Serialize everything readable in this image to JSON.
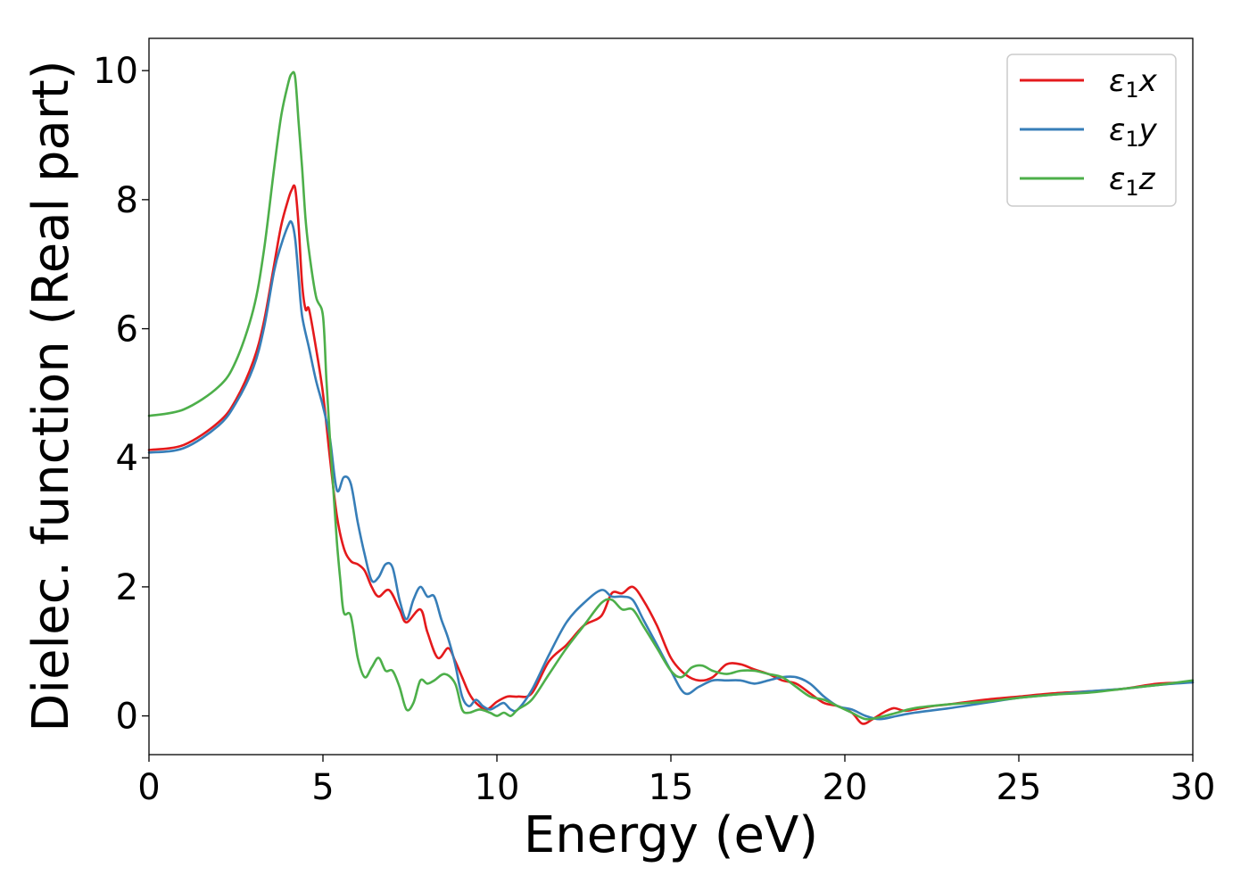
{
  "chart_data": {
    "type": "line",
    "xlabel": "Energy (eV)",
    "ylabel": "Dielec. function (Real part)",
    "xlim": [
      0,
      30
    ],
    "ylim": [
      -0.6,
      10.5
    ],
    "xticks": [
      "0",
      "5",
      "10",
      "15",
      "20",
      "25",
      "30"
    ],
    "yticks": [
      "0",
      "2",
      "4",
      "6",
      "8",
      "10"
    ],
    "grid": false,
    "legend_position": "top-right",
    "series": [
      {
        "name": "ε₁x",
        "legend": {
          "base": "ε",
          "sub": "1",
          "suffix": "x"
        },
        "color": "#e41a1c",
        "x": [
          0,
          1,
          2,
          2.5,
          3,
          3.3,
          3.6,
          3.8,
          4.0,
          4.1,
          4.2,
          4.3,
          4.4,
          4.5,
          4.6,
          4.8,
          5.0,
          5.2,
          5.4,
          5.6,
          5.8,
          6.0,
          6.2,
          6.4,
          6.6,
          6.9,
          7.2,
          7.4,
          7.8,
          8.0,
          8.3,
          8.6,
          8.8,
          9.0,
          9.2,
          9.4,
          9.7,
          10.0,
          10.3,
          10.6,
          11.0,
          11.5,
          12.0,
          12.5,
          13.0,
          13.3,
          13.6,
          13.9,
          14.2,
          14.6,
          15.0,
          15.4,
          15.8,
          16.2,
          16.6,
          17.0,
          17.4,
          17.8,
          18.2,
          18.6,
          19.0,
          19.4,
          19.8,
          20.2,
          20.5,
          20.8,
          21.1,
          21.4,
          21.7,
          22.0,
          22.5,
          23,
          24,
          25,
          26,
          27,
          28,
          29,
          30
        ],
        "y": [
          4.12,
          4.2,
          4.55,
          4.9,
          5.5,
          6.1,
          7.0,
          7.6,
          8.0,
          8.15,
          8.18,
          7.6,
          6.7,
          6.3,
          6.3,
          5.7,
          5.0,
          4.0,
          3.1,
          2.6,
          2.4,
          2.35,
          2.25,
          2.0,
          1.85,
          1.95,
          1.65,
          1.45,
          1.65,
          1.3,
          0.9,
          1.05,
          0.85,
          0.6,
          0.35,
          0.2,
          0.1,
          0.22,
          0.3,
          0.3,
          0.35,
          0.85,
          1.1,
          1.4,
          1.55,
          1.9,
          1.9,
          2.0,
          1.8,
          1.4,
          0.9,
          0.65,
          0.55,
          0.6,
          0.8,
          0.8,
          0.72,
          0.65,
          0.55,
          0.5,
          0.35,
          0.2,
          0.15,
          0.05,
          -0.12,
          -0.05,
          0.05,
          0.12,
          0.08,
          0.1,
          0.15,
          0.18,
          0.25,
          0.3,
          0.35,
          0.38,
          0.42,
          0.5,
          0.52
        ]
      },
      {
        "name": "ε₁y",
        "legend": {
          "base": "ε",
          "sub": "1",
          "suffix": "y"
        },
        "color": "#377eb8",
        "x": [
          0,
          1,
          2,
          2.5,
          3,
          3.3,
          3.6,
          3.8,
          4.0,
          4.1,
          4.2,
          4.3,
          4.4,
          4.6,
          4.8,
          5.0,
          5.2,
          5.4,
          5.6,
          5.8,
          6.0,
          6.2,
          6.4,
          6.6,
          6.8,
          7.0,
          7.2,
          7.4,
          7.6,
          7.8,
          8.0,
          8.2,
          8.4,
          8.6,
          8.8,
          9.0,
          9.2,
          9.4,
          9.6,
          9.8,
          10.0,
          10.2,
          10.4,
          10.6,
          11.0,
          11.5,
          12.0,
          12.5,
          13.0,
          13.3,
          13.6,
          13.9,
          14.2,
          14.6,
          15.0,
          15.4,
          15.8,
          16.2,
          16.6,
          17.0,
          17.4,
          17.8,
          18.2,
          18.6,
          19.0,
          19.4,
          19.8,
          20.2,
          20.6,
          21.0,
          21.5,
          22,
          23,
          24,
          25,
          26,
          27,
          28,
          29,
          30
        ],
        "y": [
          4.08,
          4.15,
          4.5,
          4.85,
          5.4,
          6.0,
          6.9,
          7.3,
          7.6,
          7.65,
          7.4,
          6.8,
          6.2,
          5.7,
          5.2,
          4.8,
          4.3,
          3.5,
          3.7,
          3.6,
          3.0,
          2.5,
          2.1,
          2.15,
          2.35,
          2.3,
          1.8,
          1.5,
          1.8,
          2.0,
          1.85,
          1.85,
          1.5,
          1.2,
          0.8,
          0.3,
          0.15,
          0.25,
          0.15,
          0.1,
          0.15,
          0.2,
          0.1,
          0.1,
          0.4,
          0.95,
          1.45,
          1.75,
          1.95,
          1.85,
          1.85,
          1.8,
          1.5,
          1.1,
          0.7,
          0.35,
          0.45,
          0.55,
          0.55,
          0.55,
          0.5,
          0.55,
          0.6,
          0.6,
          0.5,
          0.3,
          0.15,
          0.1,
          0.0,
          -0.05,
          0.0,
          0.05,
          0.12,
          0.2,
          0.28,
          0.33,
          0.38,
          0.42,
          0.48,
          0.52
        ]
      },
      {
        "name": "ε₁z",
        "legend": {
          "base": "ε",
          "sub": "1",
          "suffix": "z"
        },
        "color": "#4daf4a",
        "x": [
          0,
          1,
          2,
          2.5,
          3,
          3.3,
          3.6,
          3.8,
          4.0,
          4.1,
          4.2,
          4.3,
          4.4,
          4.5,
          4.6,
          4.8,
          5.0,
          5.1,
          5.2,
          5.3,
          5.4,
          5.5,
          5.6,
          5.8,
          6.0,
          6.2,
          6.4,
          6.6,
          6.8,
          7.0,
          7.2,
          7.4,
          7.6,
          7.8,
          8.0,
          8.2,
          8.5,
          8.8,
          9.0,
          9.2,
          9.5,
          9.8,
          10.0,
          10.2,
          10.4,
          10.6,
          11.0,
          11.5,
          12.0,
          12.5,
          13.0,
          13.3,
          13.6,
          13.9,
          14.2,
          14.6,
          15.0,
          15.3,
          15.6,
          15.9,
          16.2,
          16.6,
          17.0,
          17.4,
          17.8,
          18.2,
          18.6,
          19.0,
          19.4,
          19.8,
          20.2,
          20.6,
          21.0,
          21.5,
          22,
          23,
          24,
          25,
          26,
          27,
          28,
          29,
          30
        ],
        "y": [
          4.65,
          4.75,
          5.1,
          5.5,
          6.3,
          7.2,
          8.5,
          9.3,
          9.8,
          9.95,
          9.9,
          9.2,
          8.5,
          7.7,
          7.2,
          6.5,
          6.2,
          5.2,
          4.3,
          3.5,
          2.7,
          2.1,
          1.6,
          1.55,
          0.9,
          0.6,
          0.75,
          0.9,
          0.7,
          0.7,
          0.45,
          0.1,
          0.2,
          0.55,
          0.5,
          0.55,
          0.65,
          0.5,
          0.1,
          0.05,
          0.1,
          0.05,
          0.0,
          0.05,
          0.0,
          0.1,
          0.25,
          0.65,
          1.05,
          1.4,
          1.75,
          1.8,
          1.65,
          1.65,
          1.4,
          1.05,
          0.7,
          0.6,
          0.75,
          0.78,
          0.7,
          0.65,
          0.7,
          0.7,
          0.65,
          0.6,
          0.45,
          0.3,
          0.25,
          0.15,
          0.05,
          -0.05,
          -0.02,
          0.05,
          0.12,
          0.18,
          0.22,
          0.28,
          0.33,
          0.36,
          0.42,
          0.48,
          0.55
        ]
      }
    ]
  }
}
